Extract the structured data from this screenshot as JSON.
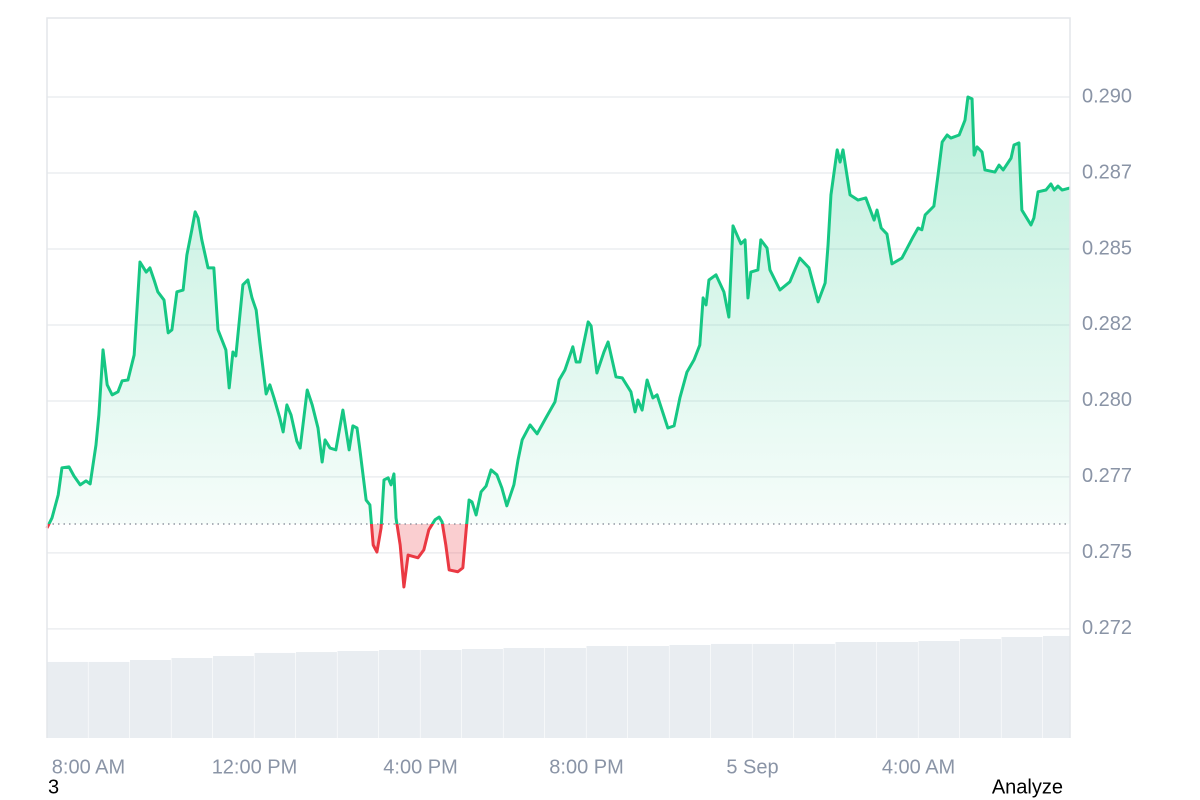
{
  "chart_data": {
    "type": "line",
    "x": [
      7.0,
      7.12,
      7.27,
      7.36,
      7.53,
      7.65,
      7.8,
      7.94,
      8.04,
      8.18,
      8.25,
      8.35,
      8.45,
      8.57,
      8.71,
      8.81,
      8.95,
      9.1,
      9.24,
      9.39,
      9.48,
      9.58,
      9.67,
      9.82,
      9.92,
      10.01,
      10.13,
      10.28,
      10.37,
      10.49,
      10.57,
      10.64,
      10.73,
      10.88,
      11.02,
      11.12,
      11.31,
      11.39,
      11.48,
      11.55,
      11.72,
      11.84,
      11.94,
      12.04,
      12.13,
      12.28,
      12.37,
      12.47,
      12.61,
      12.69,
      12.78,
      12.88,
      13.02,
      13.1,
      13.27,
      13.39,
      13.53,
      13.63,
      13.7,
      13.82,
      13.96,
      14.13,
      14.28,
      14.37,
      14.47,
      14.54,
      14.69,
      14.78,
      14.86,
      14.95,
      15.05,
      15.12,
      15.22,
      15.29,
      15.36,
      15.41,
      15.51,
      15.6,
      15.7,
      15.94,
      16.08,
      16.2,
      16.35,
      16.45,
      16.52,
      16.61,
      16.69,
      16.9,
      17.02,
      17.1,
      17.17,
      17.24,
      17.34,
      17.46,
      17.58,
      17.7,
      17.84,
      17.96,
      18.08,
      18.25,
      18.35,
      18.45,
      18.64,
      18.81,
      19.02,
      19.24,
      19.34,
      19.48,
      19.67,
      19.75,
      19.84,
      20.04,
      20.11,
      20.25,
      20.42,
      20.52,
      20.71,
      20.86,
      21.07,
      21.17,
      21.24,
      21.34,
      21.46,
      21.6,
      21.7,
      21.96,
      22.11,
      22.25,
      22.42,
      22.59,
      22.73,
      22.81,
      22.88,
      22.95,
      23.12,
      23.31,
      23.43,
      23.53,
      23.72,
      23.82,
      23.89,
      23.96,
      24.13,
      24.2,
      24.35,
      24.42,
      24.66,
      24.9,
      25.14,
      25.36,
      25.58,
      25.75,
      25.82,
      25.89,
      26.04,
      26.11,
      26.18,
      26.35,
      26.54,
      26.73,
      26.93,
      27.0,
      27.1,
      27.24,
      27.36,
      27.6,
      27.87,
      27.99,
      28.08,
      28.16,
      28.37,
      28.47,
      28.57,
      28.69,
      28.78,
      28.98,
      29.12,
      29.19,
      29.29,
      29.34,
      29.41,
      29.53,
      29.6,
      29.84,
      29.94,
      30.04,
      30.23,
      30.3,
      30.42,
      30.49,
      30.71,
      30.78,
      30.88,
      31.07,
      31.19,
      31.27,
      31.36,
      31.46,
      31.65
    ],
    "series": [
      {
        "color": "#16c784",
        "below_color": "#ea3943",
        "values": [
          0.27582,
          0.27615,
          0.27691,
          0.2778,
          0.27783,
          0.27753,
          0.27724,
          0.27737,
          0.27727,
          0.27855,
          0.27954,
          0.28168,
          0.28053,
          0.2802,
          0.2803,
          0.28066,
          0.28069,
          0.28151,
          0.28457,
          0.28424,
          0.28438,
          0.28398,
          0.28359,
          0.28332,
          0.28224,
          0.28234,
          0.28359,
          0.28365,
          0.2848,
          0.28563,
          0.28622,
          0.28602,
          0.2853,
          0.28438,
          0.28438,
          0.28234,
          0.28168,
          0.28043,
          0.28161,
          0.28148,
          0.28382,
          0.28398,
          0.28339,
          0.28299,
          0.28191,
          0.28023,
          0.28053,
          0.2801,
          0.27944,
          0.27898,
          0.27987,
          0.27954,
          0.27868,
          0.27845,
          0.28036,
          0.27987,
          0.27911,
          0.27799,
          0.27872,
          0.27845,
          0.27839,
          0.2797,
          0.27839,
          0.27918,
          0.27911,
          0.27839,
          0.27674,
          0.27658,
          0.27526,
          0.27503,
          0.27582,
          0.2774,
          0.27747,
          0.27724,
          0.2776,
          0.27615,
          0.27526,
          0.27388,
          0.27493,
          0.27484,
          0.2751,
          0.27576,
          0.27609,
          0.27618,
          0.27602,
          0.27526,
          0.27444,
          0.27438,
          0.27451,
          0.27576,
          0.27674,
          0.27668,
          0.27625,
          0.27701,
          0.2772,
          0.27773,
          0.27757,
          0.27714,
          0.27655,
          0.27724,
          0.27806,
          0.27872,
          0.27921,
          0.27892,
          0.27944,
          0.27997,
          0.28069,
          0.28102,
          0.28178,
          0.28128,
          0.28128,
          0.2826,
          0.28247,
          0.28092,
          0.28161,
          0.28194,
          0.28079,
          0.28076,
          0.2803,
          0.27964,
          0.28003,
          0.2797,
          0.28069,
          0.2801,
          0.2802,
          0.27911,
          0.27918,
          0.2801,
          0.28095,
          0.28135,
          0.28184,
          0.28339,
          0.28316,
          0.28398,
          0.28415,
          0.28359,
          0.28276,
          0.28576,
          0.28517,
          0.2853,
          0.28339,
          0.28424,
          0.28431,
          0.2853,
          0.28503,
          0.28431,
          0.28365,
          0.28392,
          0.2847,
          0.28438,
          0.28326,
          0.28388,
          0.28513,
          0.28678,
          0.28826,
          0.28786,
          0.28826,
          0.28678,
          0.28661,
          0.28668,
          0.28595,
          0.28628,
          0.28569,
          0.28549,
          0.28451,
          0.2847,
          0.2854,
          0.28569,
          0.28563,
          0.28612,
          0.28641,
          0.28743,
          0.28852,
          0.28875,
          0.28865,
          0.28875,
          0.28924,
          0.29,
          0.28994,
          0.28809,
          0.28836,
          0.28819,
          0.2876,
          0.28753,
          0.28776,
          0.2876,
          0.28799,
          0.28842,
          0.28849,
          0.28628,
          0.28579,
          0.28602,
          0.28688,
          0.28694,
          0.28714,
          0.28694,
          0.28707,
          0.28694,
          0.28701
        ]
      }
    ],
    "baseline": 0.27595,
    "volume": {
      "color": "#e9edf1",
      "x": [
        7,
        8,
        9,
        10,
        11,
        12,
        13,
        14,
        15,
        16,
        17,
        18,
        19,
        20,
        21,
        22,
        23,
        24,
        25,
        26,
        27,
        28,
        29,
        30,
        31
      ],
      "values": [
        10.56,
        10.56,
        10.83,
        11.11,
        11.39,
        11.81,
        11.94,
        12.08,
        12.22,
        12.22,
        12.36,
        12.5,
        12.5,
        12.78,
        12.78,
        12.92,
        13.06,
        13.06,
        13.06,
        13.33,
        13.33,
        13.47,
        13.75,
        14.03,
        14.17
      ]
    },
    "xlim": [
      7,
      31.65
    ],
    "xticks": [
      {
        "value": 8,
        "label": "8:00 AM"
      },
      {
        "value": 12,
        "label": "12:00 PM"
      },
      {
        "value": 16,
        "label": "4:00 PM"
      },
      {
        "value": 20,
        "label": "8:00 PM"
      },
      {
        "value": 24,
        "label": "5 Sep"
      },
      {
        "value": 28,
        "label": "4:00 AM"
      }
    ],
    "ylim": [
      0.26891,
      0.2926
    ],
    "yticks": [
      {
        "value": 0.2725,
        "label": "0.272"
      },
      {
        "value": 0.275,
        "label": "0.275"
      },
      {
        "value": 0.2775,
        "label": "0.277"
      },
      {
        "value": 0.28,
        "label": "0.280"
      },
      {
        "value": 0.2825,
        "label": "0.282"
      },
      {
        "value": 0.285,
        "label": "0.285"
      },
      {
        "value": 0.2875,
        "label": "0.287"
      },
      {
        "value": 0.29,
        "label": "0.290"
      }
    ],
    "y2lim": [
      0,
      100
    ],
    "grid": true
  },
  "footer": {
    "left": "3",
    "right": "Analyze"
  }
}
